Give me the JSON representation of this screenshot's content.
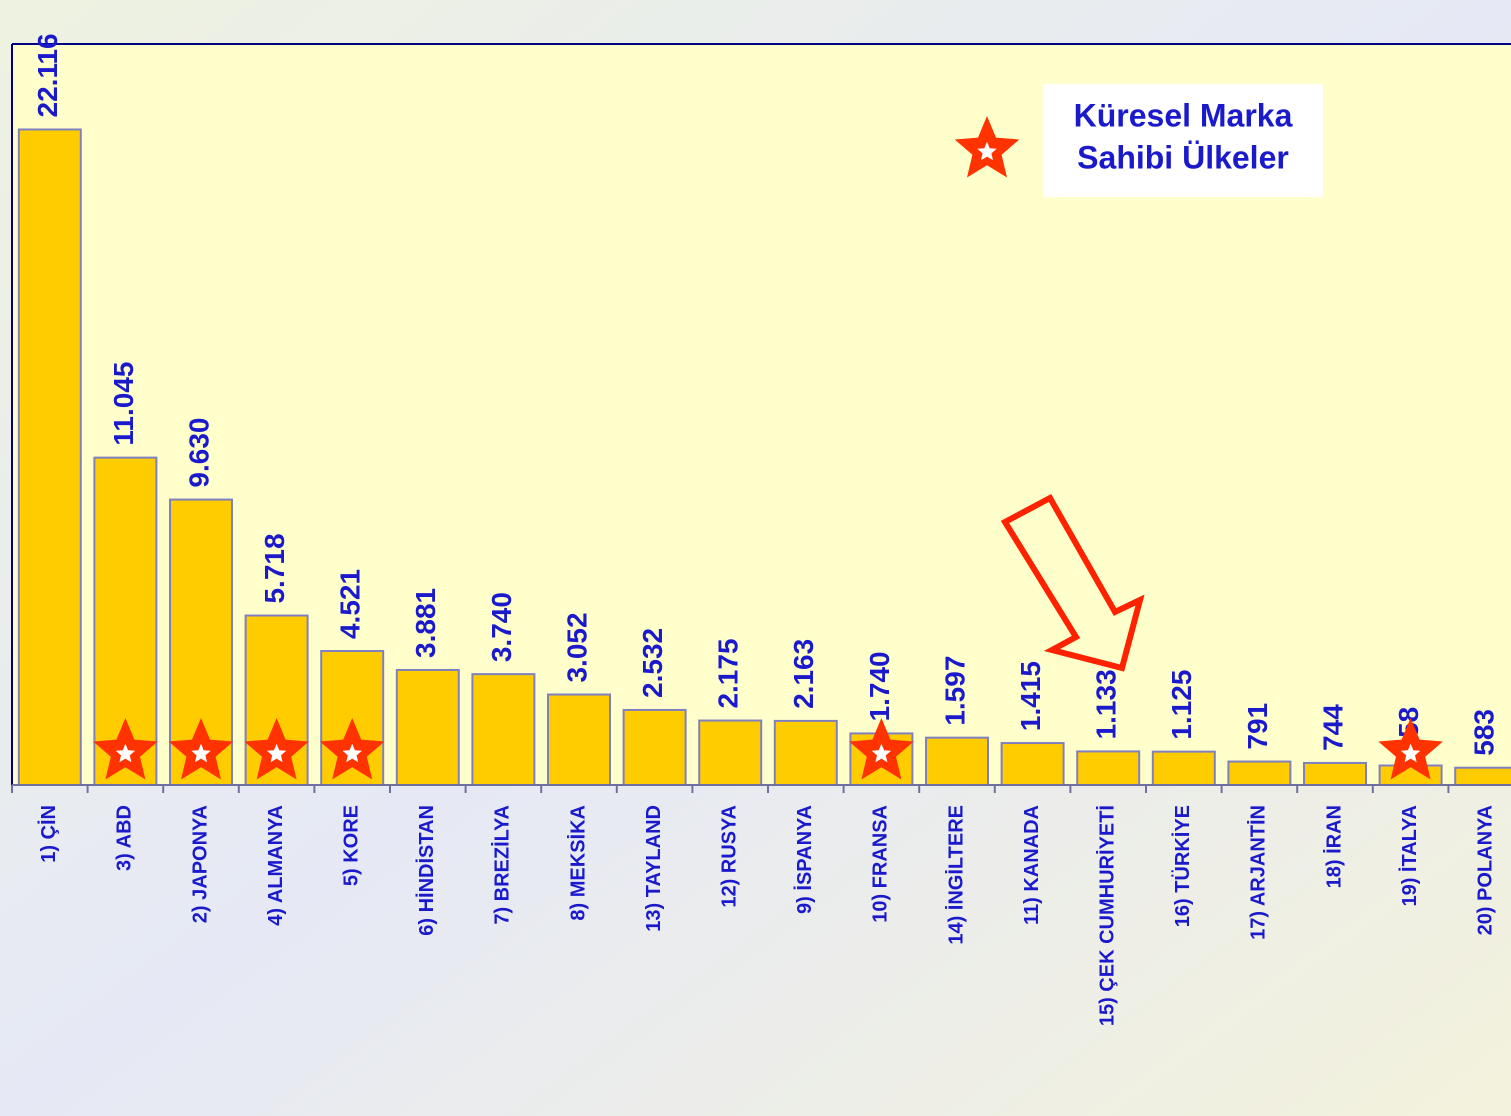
{
  "chart_data": {
    "type": "bar",
    "categories": [
      "1) ÇİN",
      "3) ABD",
      "2) JAPONYA",
      "4) ALMANYA",
      "5) KORE",
      "6) HİNDİSTAN",
      "7) BREZİLYA",
      "8) MEKSİKA",
      "13) TAYLAND",
      "12) RUSYA",
      "9) İSPANYA",
      "10) FRANSA",
      "14) İNGİLTERE",
      "11) KANADA",
      "15) ÇEK CUMHURİYETİ",
      "16) TÜRKİYE",
      "17) ARJANTİN",
      "18) İRAN",
      "19) İTALYA",
      "20) POLANYA"
    ],
    "values": [
      22116,
      11045,
      9630,
      5718,
      4521,
      3881,
      3740,
      3052,
      2532,
      2175,
      2163,
      1740,
      1597,
      1415,
      1133,
      1125,
      791,
      744,
      658,
      583
    ],
    "value_labels": [
      "22.116",
      "11.045",
      "9.630",
      "5.718",
      "4.521",
      "3.881",
      "3.740",
      "3.052",
      "2.532",
      "2.175",
      "2.163",
      "1.740",
      "1.597",
      "1.415",
      "1.133",
      "1.125",
      "791",
      "744",
      "658",
      "583"
    ],
    "color": "#ffcc00",
    "ylim": [
      0,
      25000
    ],
    "starred": [
      false,
      true,
      true,
      true,
      true,
      false,
      false,
      false,
      false,
      false,
      false,
      true,
      false,
      false,
      false,
      false,
      false,
      false,
      true,
      false
    ],
    "legend": {
      "lines": [
        "Küresel Marka",
        "Sahibi Ülkeler"
      ],
      "color": "#ff3300"
    }
  }
}
